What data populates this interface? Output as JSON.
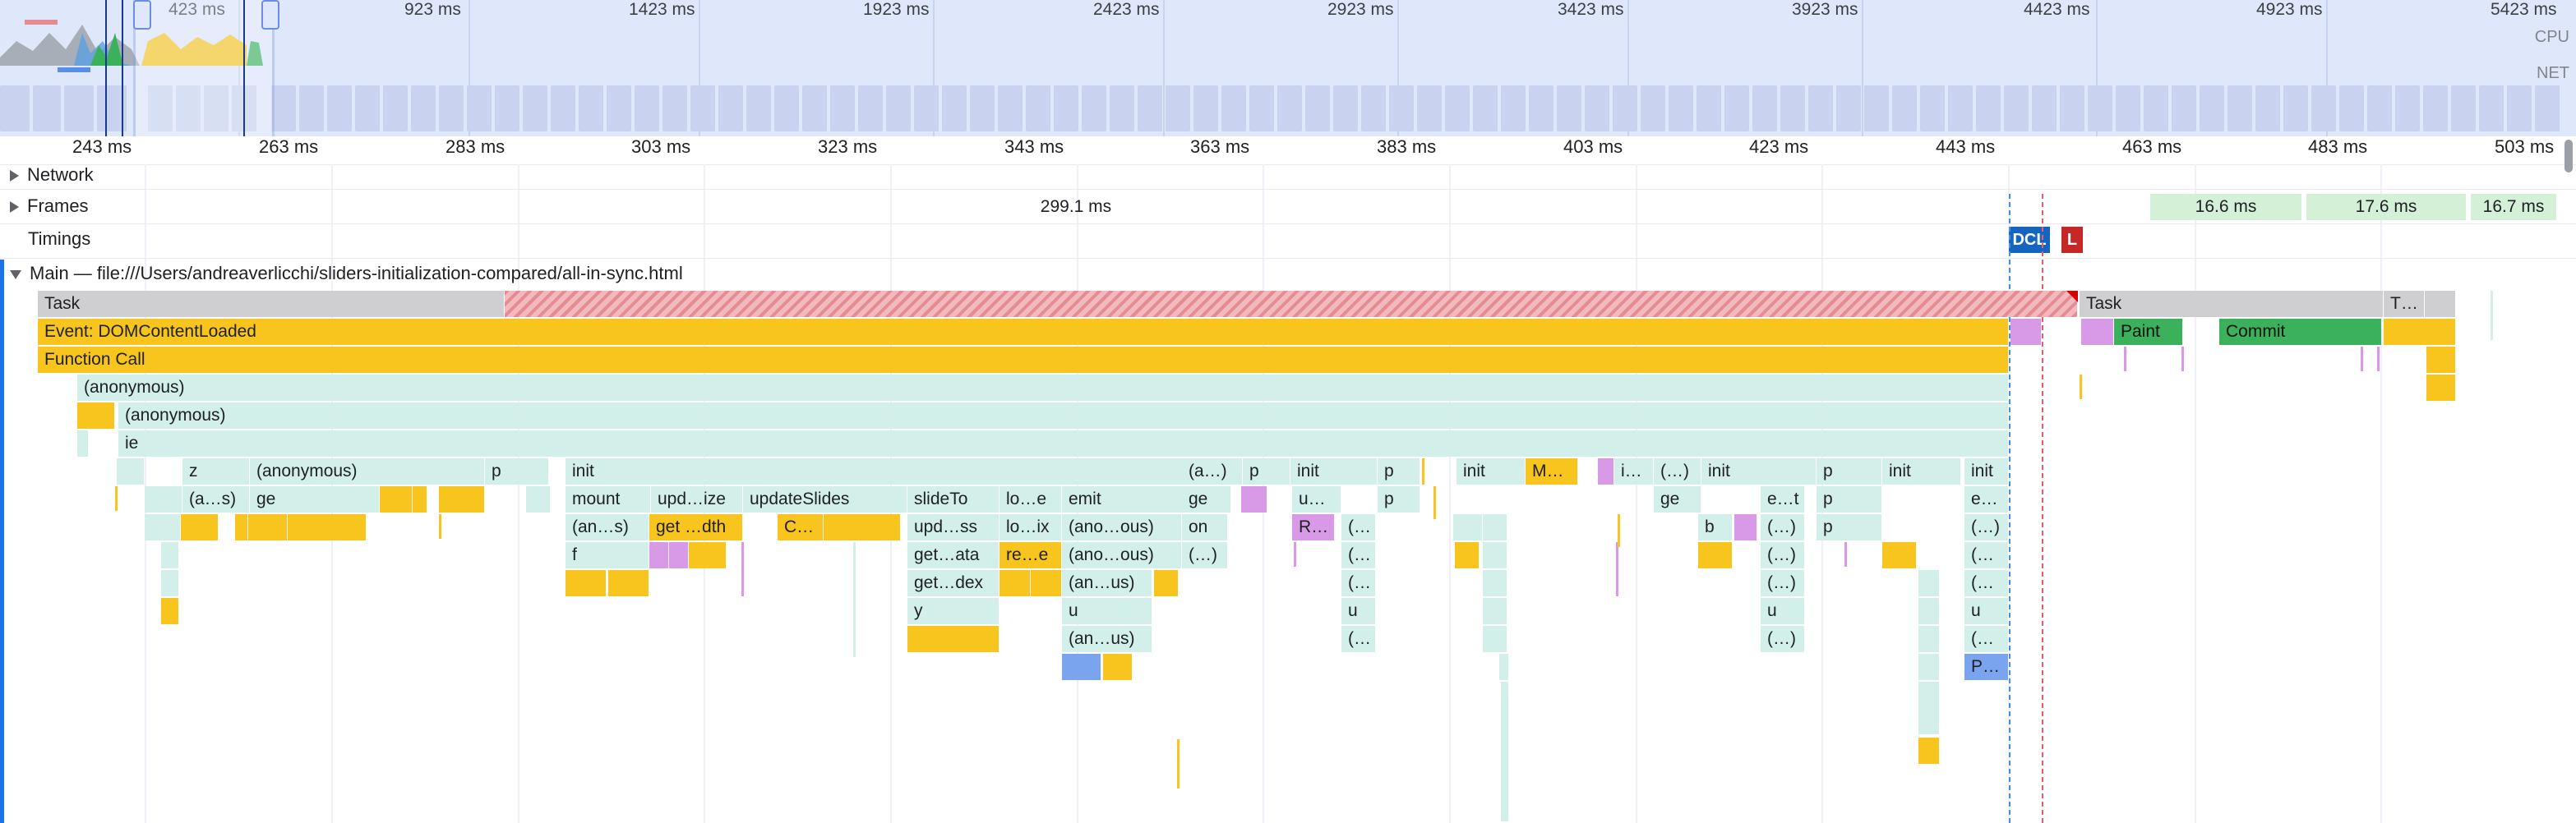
{
  "overview": {
    "ticks": [
      "423 ms",
      "923 ms",
      "1423 ms",
      "1923 ms",
      "2423 ms",
      "2923 ms",
      "3423 ms",
      "3923 ms",
      "4423 ms",
      "4923 ms",
      "5423 ms"
    ],
    "cpu_label": "CPU",
    "net_label": "NET"
  },
  "ruler": {
    "ticks": [
      "243 ms",
      "263 ms",
      "283 ms",
      "303 ms",
      "323 ms",
      "343 ms",
      "363 ms",
      "383 ms",
      "403 ms",
      "423 ms",
      "443 ms",
      "463 ms",
      "483 ms",
      "503 ms"
    ]
  },
  "tracks": {
    "network": "Network",
    "frames": "Frames",
    "timings": "Timings",
    "main": "Main — file:///Users/andreaverlicchi/sliders-initialization-compared/all-in-sync.html"
  },
  "frames": {
    "long_frame": "299.1 ms",
    "frame_a": "16.6 ms",
    "frame_b": "17.6 ms",
    "frame_c": "16.7 ms"
  },
  "timings": {
    "dcl": "DCL",
    "l": "L"
  },
  "colors": {
    "task": "#cfcfd1",
    "scripting": "#f7c51e",
    "js_frame": "#d2efea",
    "rendering": "#d89ae7",
    "painting": "#3bb15c",
    "dcl": "#1565c0",
    "load": "#c62828"
  },
  "flame": {
    "task1": "Task",
    "task2": "Task",
    "task3": "T…",
    "event": "Event: DOMContentLoaded",
    "paint": "Paint",
    "commit": "Commit",
    "function_call": "Function Call",
    "anon1": "(anonymous)",
    "anon2": "(anonymous)",
    "ie": "ie",
    "r4": [
      "z",
      "(anonymous)",
      "p",
      "init",
      "(a…)",
      "p",
      "init",
      "p",
      "init",
      "M…",
      "i…",
      "(…)",
      "init",
      "p",
      "init",
      "init"
    ],
    "r5": [
      "(a…s)",
      "ge",
      "mount",
      "upd…ize",
      "updateSlides",
      "slideTo",
      "lo…e",
      "emit",
      "ge",
      "u…",
      "p",
      "ge",
      "e…t",
      "p",
      "e…"
    ],
    "r6": [
      "(an…s)",
      "get …dth",
      "C…",
      "upd…ss",
      "lo…ix",
      "(ano…ous)",
      "on",
      "R…",
      "(…",
      "b",
      "(…)",
      "p",
      "(…)"
    ],
    "r7": [
      "f",
      "get…ata",
      "re…e",
      "(ano…ous)",
      "(…)",
      "(…",
      "(…)",
      "(…"
    ],
    "r8": [
      "get…dex",
      "(an…us)",
      "(…",
      "(…)",
      "(…"
    ],
    "r9": [
      "y",
      "u",
      "u",
      "u",
      "u"
    ],
    "r10": [
      "(an…us)",
      "(…",
      "(…)",
      "(…"
    ],
    "r11": [
      "P…"
    ]
  }
}
